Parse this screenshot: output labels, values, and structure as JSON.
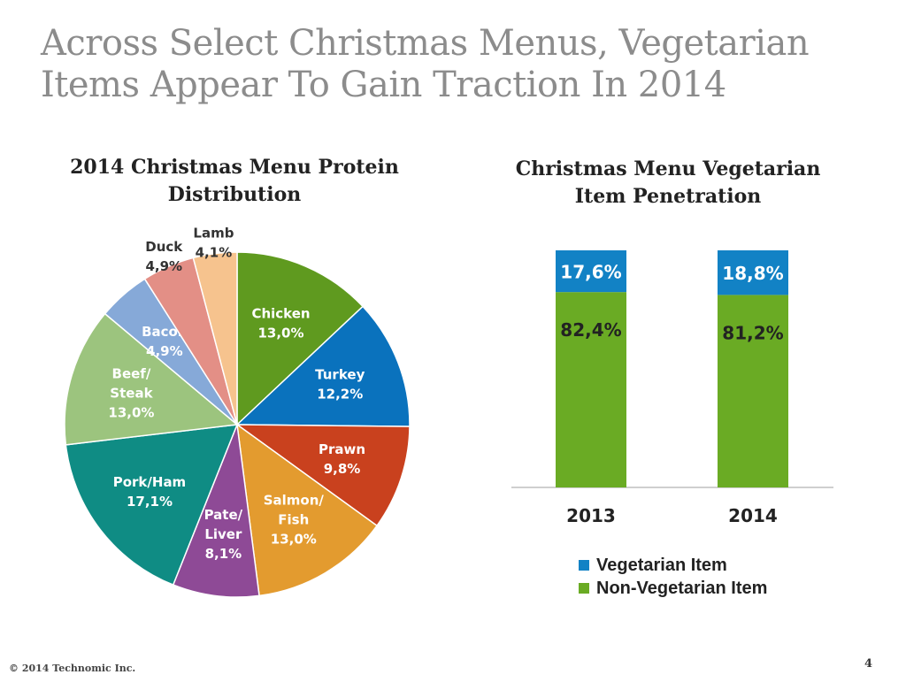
{
  "title": {
    "line1": "Across Select Christmas Menus, Vegetarian",
    "line2": "Items Appear To Gain Traction In 2014"
  },
  "footer": {
    "copyright": "© 2014 Technomic Inc.",
    "page": "4"
  },
  "chart_data": [
    {
      "type": "pie",
      "title": "2014 Christmas Menu Protein Distribution",
      "title_lines": [
        "2014 Christmas Menu Protein",
        "Distribution"
      ],
      "unit": "%",
      "slices": [
        {
          "label": "Chicken",
          "label_lines": [
            "Chicken"
          ],
          "value": 13.0,
          "display": "13,0%",
          "color": "#5f9a1f"
        },
        {
          "label": "Turkey",
          "label_lines": [
            "Turkey"
          ],
          "value": 12.2,
          "display": "12,2%",
          "color": "#0a72bd"
        },
        {
          "label": "Prawn",
          "label_lines": [
            "Prawn"
          ],
          "value": 9.8,
          "display": "9,8%",
          "color": "#c9411e"
        },
        {
          "label": "Salmon/ Fish",
          "label_lines": [
            "Salmon/",
            "Fish"
          ],
          "value": 13.0,
          "display": "13,0%",
          "color": "#e39b2f"
        },
        {
          "label": "Pate/ Liver",
          "label_lines": [
            "Pate/",
            "Liver"
          ],
          "value": 8.1,
          "display": "8,1%",
          "color": "#8e4a96"
        },
        {
          "label": "Pork/Ham",
          "label_lines": [
            "Pork/Ham"
          ],
          "value": 17.1,
          "display": "17,1%",
          "color": "#0f8c84"
        },
        {
          "label": "Beef/ Steak",
          "label_lines": [
            "Beef/",
            "Steak"
          ],
          "value": 13.0,
          "display": "13,0%",
          "color": "#9cc47e"
        },
        {
          "label": "Bacon",
          "label_lines": [
            "Bacon"
          ],
          "value": 4.9,
          "display": "4,9%",
          "color": "#86a9d8"
        },
        {
          "label": "Duck",
          "label_lines": [
            "Duck"
          ],
          "value": 4.9,
          "display": "4,9%",
          "color": "#e38f86"
        },
        {
          "label": "Lamb",
          "label_lines": [
            "Lamb"
          ],
          "value": 4.1,
          "display": "4,1%",
          "color": "#f6c38e"
        }
      ]
    },
    {
      "type": "bar",
      "stacked": true,
      "title": "Christmas Menu Vegetarian Item Penetration",
      "title_lines": [
        "Christmas Menu Vegetarian",
        "Item Penetration"
      ],
      "categories": [
        "2013",
        "2014"
      ],
      "unit": "%",
      "ylim": [
        0,
        100
      ],
      "series": [
        {
          "name": "Non-Vegetarian Item",
          "values": [
            82.4,
            81.2
          ],
          "labels": [
            "82,4%",
            "81,2%"
          ],
          "color": "#6aab24"
        },
        {
          "name": "Vegetarian Item",
          "values": [
            17.6,
            18.8
          ],
          "labels": [
            "17,6%",
            "18,8%"
          ],
          "color": "#1282c5"
        }
      ],
      "legend": [
        {
          "name": "Vegetarian Item",
          "color": "#1282c5"
        },
        {
          "name": "Non-Vegetarian Item",
          "color": "#6aab24"
        }
      ],
      "legend_position": "bottom"
    }
  ]
}
